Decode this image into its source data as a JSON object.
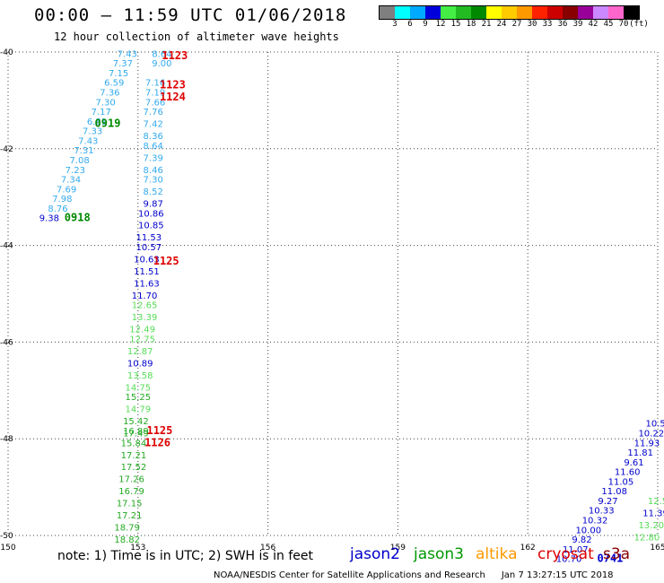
{
  "header": {
    "title": "00:00 – 11:59 UTC 01/06/2018",
    "subtitle": "12 hour collection of altimeter wave heights"
  },
  "colorbar": {
    "colors": [
      "#7f7f7f",
      "#00ffff",
      "#00aaff",
      "#0000dd",
      "#44ee44",
      "#22bb22",
      "#008800",
      "#ffff00",
      "#ffcc00",
      "#ff9900",
      "#ff2200",
      "#cc0000",
      "#880000",
      "#990099",
      "#cc88ff",
      "#ff66cc",
      "#000000"
    ],
    "labels": [
      "3",
      "6",
      "9",
      "12",
      "15",
      "18",
      "21",
      "24",
      "27",
      "30",
      "33",
      "36",
      "39",
      "42",
      "45",
      "70",
      "(ft)"
    ]
  },
  "chart_data": {
    "type": "scatter",
    "title": "00:00 – 11:59 UTC 01/06/2018",
    "subtitle": "12 hour collection of altimeter wave heights",
    "xlim": [
      150,
      165
    ],
    "ylim": [
      -50,
      -40
    ],
    "x_ticks": [
      "150",
      "153",
      "156",
      "159",
      "162",
      "165"
    ],
    "y_ticks": [
      "-40",
      "-42",
      "-44",
      "-46",
      "-48",
      "-50"
    ],
    "grid": true,
    "track_points": [
      {
        "lon": 152.75,
        "lat": -40.1,
        "label": "7.43",
        "color": "#33aaee"
      },
      {
        "lon": 152.65,
        "lat": -40.3,
        "label": "7.37",
        "color": "#33aaee"
      },
      {
        "lon": 152.55,
        "lat": -40.5,
        "label": "7.15",
        "color": "#33aaee"
      },
      {
        "lon": 152.45,
        "lat": -40.7,
        "label": "6.59",
        "color": "#33aaee"
      },
      {
        "lon": 152.35,
        "lat": -40.9,
        "label": "7.36",
        "color": "#33aaee"
      },
      {
        "lon": 152.25,
        "lat": -41.1,
        "label": "7.30",
        "color": "#33aaee"
      },
      {
        "lon": 152.15,
        "lat": -41.3,
        "label": "7.17",
        "color": "#33aaee"
      },
      {
        "lon": 152.05,
        "lat": -41.5,
        "label": "6.81",
        "color": "#33aaee"
      },
      {
        "lon": 151.95,
        "lat": -41.7,
        "label": "7.33",
        "color": "#33aaee"
      },
      {
        "lon": 151.85,
        "lat": -41.9,
        "label": "7.43",
        "color": "#33aaee"
      },
      {
        "lon": 151.75,
        "lat": -42.1,
        "label": "7.31",
        "color": "#33aaee"
      },
      {
        "lon": 151.65,
        "lat": -42.3,
        "label": "7.08",
        "color": "#33aaee"
      },
      {
        "lon": 151.55,
        "lat": -42.5,
        "label": "7.23",
        "color": "#33aaee"
      },
      {
        "lon": 151.45,
        "lat": -42.7,
        "label": "7.34",
        "color": "#33aaee"
      },
      {
        "lon": 151.35,
        "lat": -42.9,
        "label": "7.69",
        "color": "#33aaee"
      },
      {
        "lon": 151.25,
        "lat": -43.1,
        "label": "7.98",
        "color": "#33aaee"
      },
      {
        "lon": 151.15,
        "lat": -43.3,
        "label": "8.76",
        "color": "#33aaee"
      },
      {
        "lon": 150.95,
        "lat": -43.5,
        "label": "9.38",
        "color": "#0000cc"
      },
      {
        "lon": 153.55,
        "lat": -40.1,
        "label": "8.64",
        "color": "#33aaee"
      },
      {
        "lon": 153.55,
        "lat": -40.3,
        "label": "9.00",
        "color": "#33aaee"
      },
      {
        "lon": 153.4,
        "lat": -40.7,
        "label": "7.16",
        "color": "#33aaee"
      },
      {
        "lon": 153.4,
        "lat": -40.9,
        "label": "7.19",
        "color": "#33aaee"
      },
      {
        "lon": 153.4,
        "lat": -41.1,
        "label": "7.66",
        "color": "#33aaee"
      },
      {
        "lon": 153.35,
        "lat": -41.3,
        "label": "7.76",
        "color": "#33aaee"
      },
      {
        "lon": 153.35,
        "lat": -41.55,
        "label": "7.42",
        "color": "#33aaee"
      },
      {
        "lon": 153.35,
        "lat": -41.8,
        "label": "8.36",
        "color": "#33aaee"
      },
      {
        "lon": 153.35,
        "lat": -42.0,
        "label": "8.64",
        "color": "#33aaee"
      },
      {
        "lon": 153.35,
        "lat": -42.25,
        "label": "7.39",
        "color": "#33aaee"
      },
      {
        "lon": 153.35,
        "lat": -42.5,
        "label": "8.46",
        "color": "#33aaee"
      },
      {
        "lon": 153.35,
        "lat": -42.7,
        "label": "7.30",
        "color": "#33aaee"
      },
      {
        "lon": 153.35,
        "lat": -42.95,
        "label": "8.52",
        "color": "#33aaee"
      },
      {
        "lon": 153.35,
        "lat": -43.2,
        "label": "9.87",
        "color": "#0000cc"
      },
      {
        "lon": 153.3,
        "lat": -43.4,
        "label": "10.86",
        "color": "#0000cc"
      },
      {
        "lon": 153.3,
        "lat": -43.65,
        "label": "10.85",
        "color": "#0000cc"
      },
      {
        "lon": 153.25,
        "lat": -43.9,
        "label": "11.53",
        "color": "#0000cc"
      },
      {
        "lon": 153.25,
        "lat": -44.1,
        "label": "10.57",
        "color": "#0000cc"
      },
      {
        "lon": 153.2,
        "lat": -44.35,
        "label": "10.63",
        "color": "#0000cc"
      },
      {
        "lon": 153.2,
        "lat": -44.6,
        "label": "11.51",
        "color": "#0000cc"
      },
      {
        "lon": 153.2,
        "lat": -44.85,
        "label": "11.63",
        "color": "#0000cc"
      },
      {
        "lon": 153.15,
        "lat": -45.1,
        "label": "11.70",
        "color": "#0000cc"
      },
      {
        "lon": 153.15,
        "lat": -45.3,
        "label": "12.65",
        "color": "#55dd55"
      },
      {
        "lon": 153.15,
        "lat": -45.55,
        "label": "13.39",
        "color": "#55dd55"
      },
      {
        "lon": 153.1,
        "lat": -45.8,
        "label": "12.49",
        "color": "#55dd55"
      },
      {
        "lon": 153.1,
        "lat": -46.0,
        "label": "12.75",
        "color": "#55dd55"
      },
      {
        "lon": 153.05,
        "lat": -46.25,
        "label": "12.87",
        "color": "#55dd55"
      },
      {
        "lon": 153.05,
        "lat": -46.5,
        "label": "10.89",
        "color": "#0000cc"
      },
      {
        "lon": 153.05,
        "lat": -46.75,
        "label": "13.58",
        "color": "#55dd55"
      },
      {
        "lon": 153.0,
        "lat": -47.0,
        "label": "14.75",
        "color": "#55dd55"
      },
      {
        "lon": 153.0,
        "lat": -47.2,
        "label": "15.25",
        "color": "#22aa22"
      },
      {
        "lon": 153.0,
        "lat": -47.45,
        "label": "14.79",
        "color": "#55dd55"
      },
      {
        "lon": 152.95,
        "lat": -47.7,
        "label": "15.42",
        "color": "#22aa22"
      },
      {
        "lon": 152.95,
        "lat": -47.9,
        "label": "16.89",
        "color": "#22aa22"
      },
      {
        "lon": 152.95,
        "lat": -47.95,
        "label": "17.49",
        "color": "#22aa22"
      },
      {
        "lon": 152.9,
        "lat": -48.15,
        "label": "15.84",
        "color": "#22aa22"
      },
      {
        "lon": 152.9,
        "lat": -48.4,
        "label": "17.21",
        "color": "#22aa22"
      },
      {
        "lon": 152.9,
        "lat": -48.65,
        "label": "17.52",
        "color": "#22aa22"
      },
      {
        "lon": 152.85,
        "lat": -48.9,
        "label": "17.26",
        "color": "#22aa22"
      },
      {
        "lon": 152.85,
        "lat": -49.15,
        "label": "16.79",
        "color": "#22aa22"
      },
      {
        "lon": 152.8,
        "lat": -49.4,
        "label": "17.15",
        "color": "#22aa22"
      },
      {
        "lon": 152.8,
        "lat": -49.65,
        "label": "17.21",
        "color": "#22aa22"
      },
      {
        "lon": 152.75,
        "lat": -49.9,
        "label": "18.79",
        "color": "#22aa22"
      },
      {
        "lon": 152.75,
        "lat": -50.15,
        "label": "18.82",
        "color": "#22aa22"
      },
      {
        "lon": 164.95,
        "lat": -47.75,
        "label": "10.5",
        "color": "#0000cc"
      },
      {
        "lon": 164.85,
        "lat": -47.95,
        "label": "10.22",
        "color": "#0000cc"
      },
      {
        "lon": 164.75,
        "lat": -48.15,
        "label": "11.93",
        "color": "#0000cc"
      },
      {
        "lon": 164.6,
        "lat": -48.35,
        "label": "11.81",
        "color": "#0000cc"
      },
      {
        "lon": 164.45,
        "lat": -48.55,
        "label": "9.61",
        "color": "#0000cc"
      },
      {
        "lon": 164.3,
        "lat": -48.75,
        "label": "11.60",
        "color": "#0000cc"
      },
      {
        "lon": 164.15,
        "lat": -48.95,
        "label": "11.05",
        "color": "#0000cc"
      },
      {
        "lon": 164.0,
        "lat": -49.15,
        "label": "11.08",
        "color": "#0000cc"
      },
      {
        "lon": 163.85,
        "lat": -49.35,
        "label": "9.27",
        "color": "#0000cc"
      },
      {
        "lon": 163.7,
        "lat": -49.55,
        "label": "10.33",
        "color": "#0000cc"
      },
      {
        "lon": 163.55,
        "lat": -49.75,
        "label": "10.32",
        "color": "#0000cc"
      },
      {
        "lon": 163.4,
        "lat": -49.95,
        "label": "10.00",
        "color": "#0000cc"
      },
      {
        "lon": 163.25,
        "lat": -50.15,
        "label": "9.82",
        "color": "#0000cc"
      },
      {
        "lon": 163.1,
        "lat": -50.35,
        "label": "11.07",
        "color": "#0000cc"
      },
      {
        "lon": 162.95,
        "lat": -50.55,
        "label": "10.70",
        "color": "#0000cc"
      },
      {
        "lon": 165.0,
        "lat": -49.35,
        "label": "12.5",
        "color": "#55dd55"
      },
      {
        "lon": 164.95,
        "lat": -49.6,
        "label": "11.39",
        "color": "#0000cc"
      },
      {
        "lon": 164.85,
        "lat": -49.85,
        "label": "13.20",
        "color": "#55dd55"
      },
      {
        "lon": 164.75,
        "lat": -50.1,
        "label": "12.80",
        "color": "#55dd55"
      }
    ],
    "time_labels": [
      {
        "lon": 153.85,
        "lat": -40.15,
        "label": "1123",
        "color": "#dd0000"
      },
      {
        "lon": 153.8,
        "lat": -40.75,
        "label": "1123",
        "color": "#dd0000"
      },
      {
        "lon": 153.8,
        "lat": -41.0,
        "label": "1124",
        "color": "#dd0000"
      },
      {
        "lon": 152.3,
        "lat": -41.55,
        "label": "0919",
        "color": "#008800"
      },
      {
        "lon": 151.6,
        "lat": -43.5,
        "label": "0918",
        "color": "#008800"
      },
      {
        "lon": 153.65,
        "lat": -44.4,
        "label": "1125",
        "color": "#dd0000"
      },
      {
        "lon": 153.5,
        "lat": -47.9,
        "label": "1125",
        "color": "#dd0000"
      },
      {
        "lon": 153.45,
        "lat": -48.15,
        "label": "1126",
        "color": "#dd0000"
      },
      {
        "lon": 163.9,
        "lat": -50.55,
        "label": "0741",
        "color": "#0000cc"
      }
    ]
  },
  "footer": {
    "note": "note: 1) Time is in UTC; 2) SWH is in feet",
    "legend": [
      {
        "label": "jason2",
        "color": "#0000cc"
      },
      {
        "label": "jason3",
        "color": "#009900"
      },
      {
        "label": "altika",
        "color": "#ff9900"
      },
      {
        "label": "cryosat",
        "color": "#dd0000"
      },
      {
        "label": "s3a",
        "color": "#880000"
      }
    ],
    "credit_org": "NOAA/NESDIS Center for Satellite Applications and Research",
    "credit_time": "Jan  7 13:27:15 UTC 2018"
  }
}
